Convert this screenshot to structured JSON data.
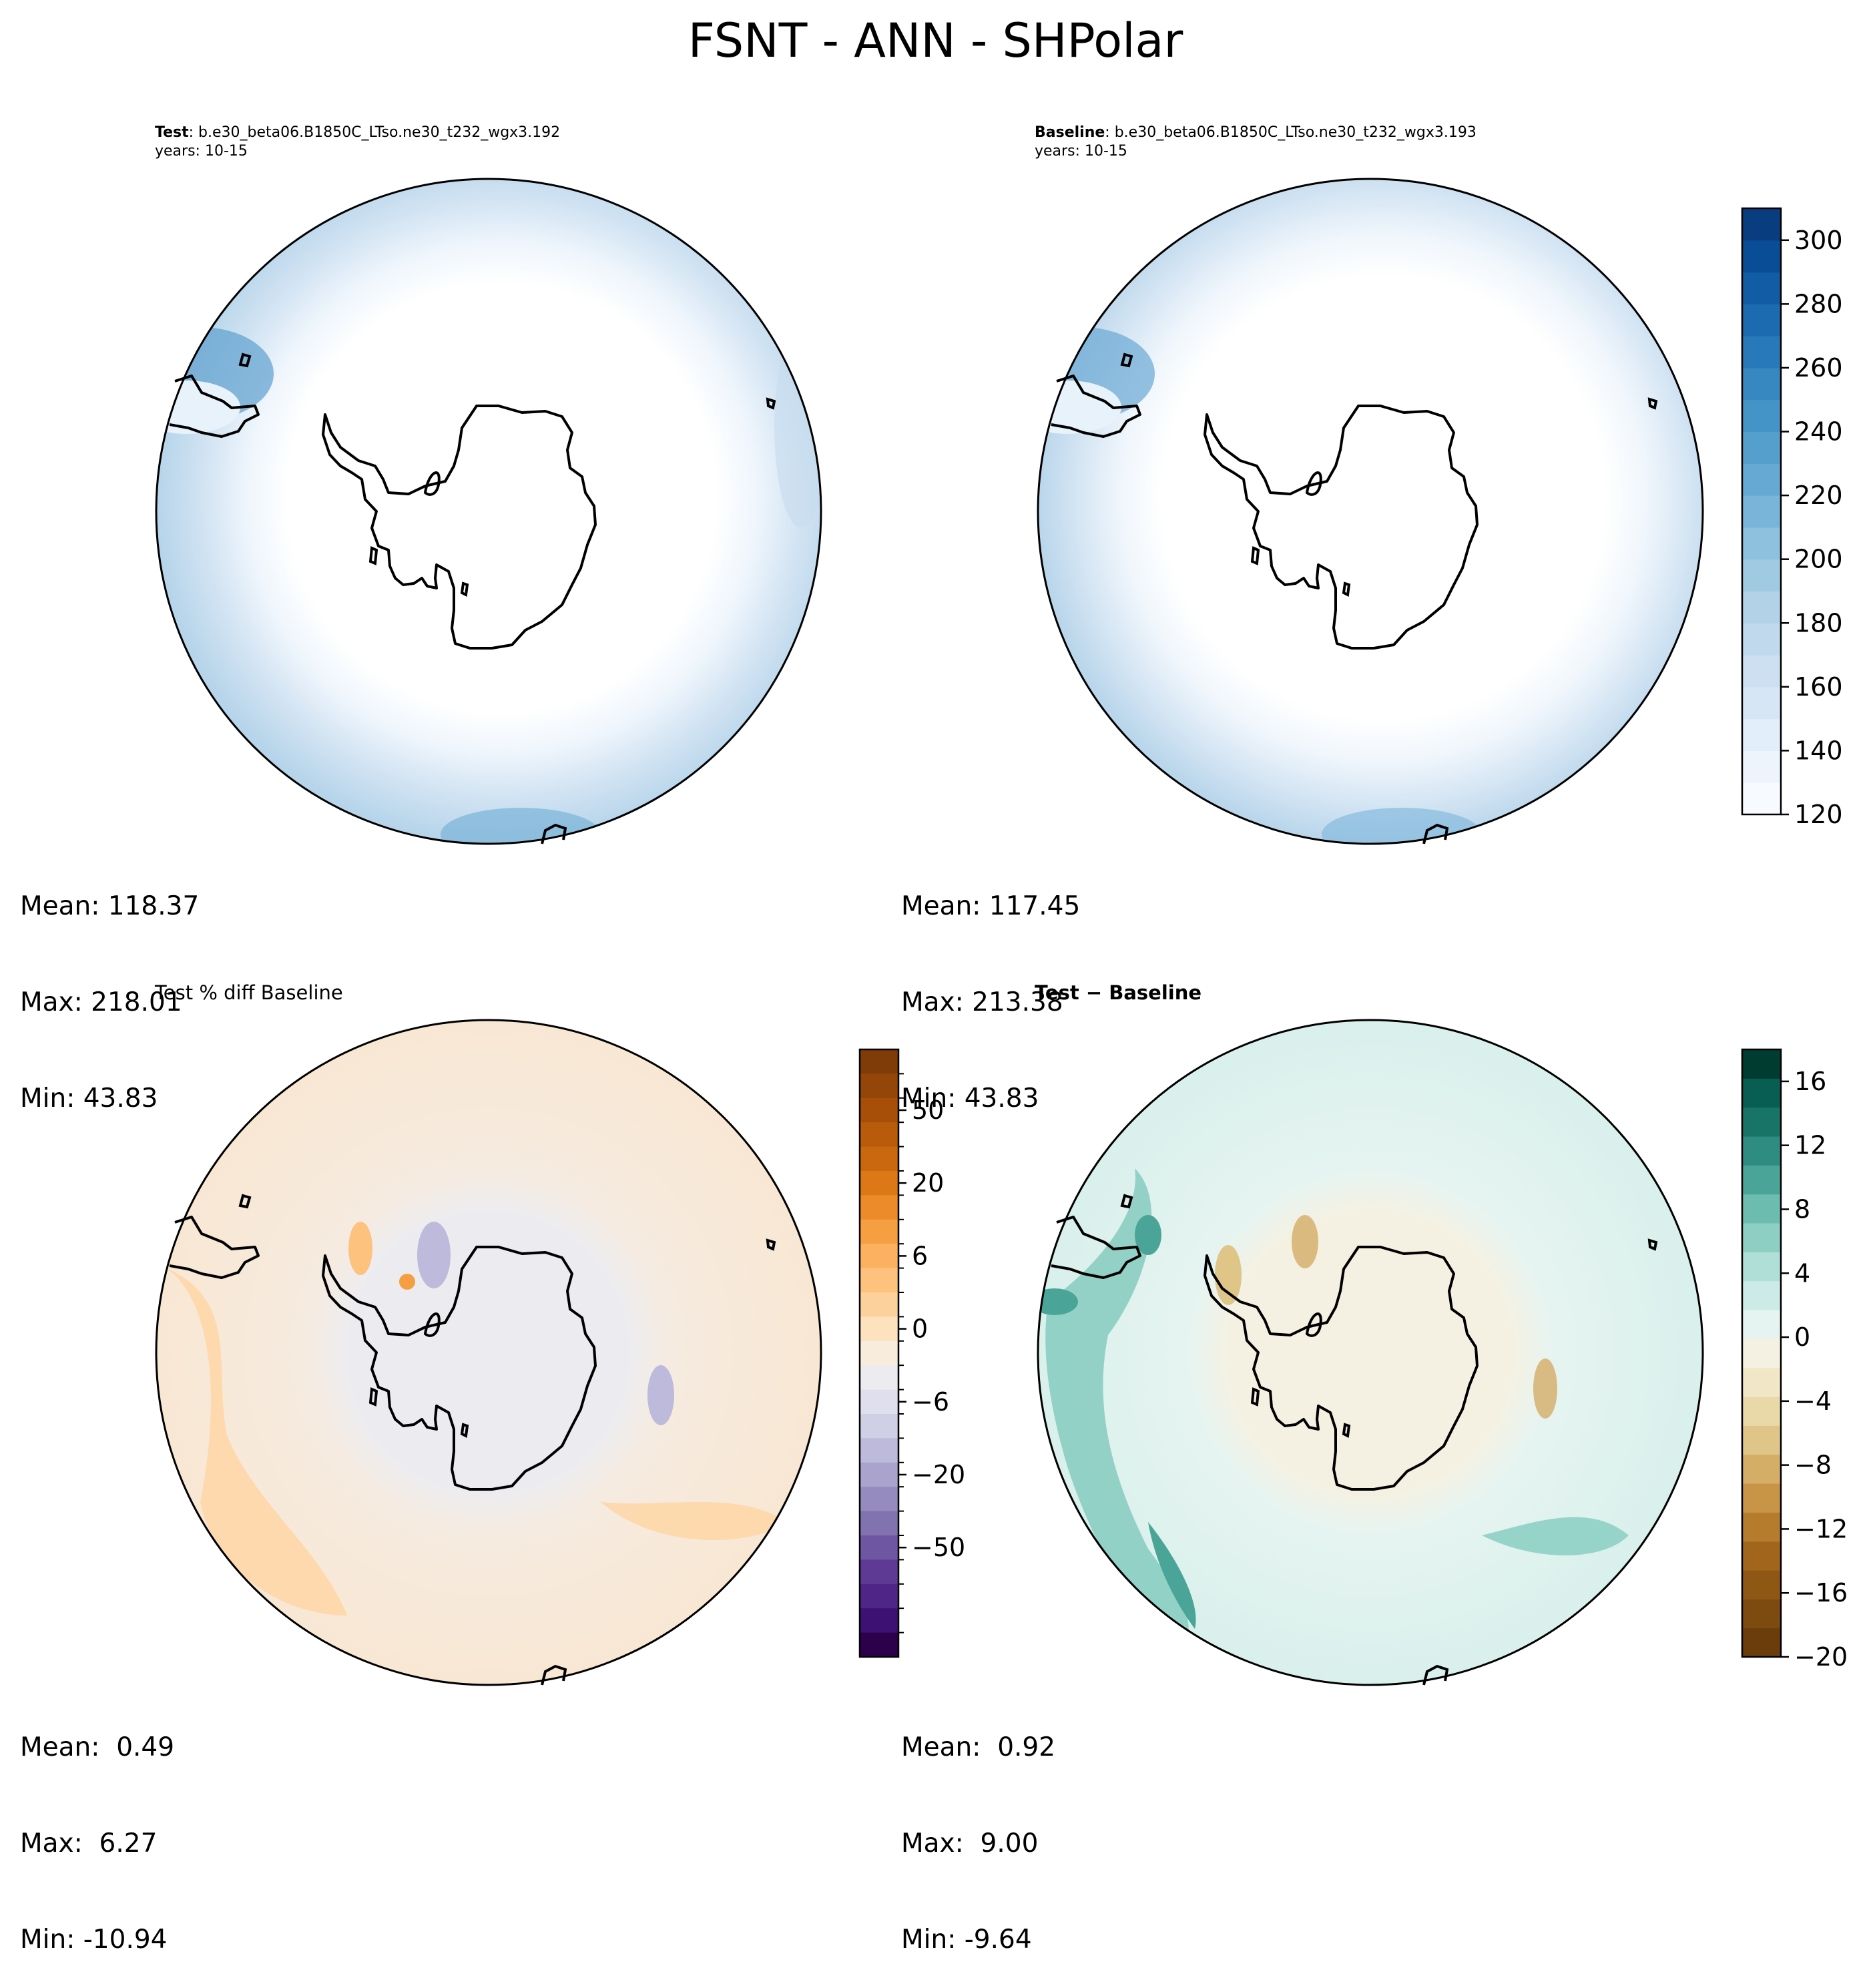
{
  "title": "FSNT - ANN - SHPolar",
  "panels": {
    "test": {
      "label_bold": "Test",
      "label_rest": ": b.e30_beta06.B1850C_LTso.ne30_t232_wgx3.192",
      "years": "years: 10-15",
      "mean": "Mean: 118.37",
      "max": "Max: 218.01",
      "min": "Min: 43.83"
    },
    "baseline": {
      "label_bold": "Baseline",
      "label_rest": ": b.e30_beta06.B1850C_LTso.ne30_t232_wgx3.193",
      "years": "years: 10-15",
      "mean": "Mean: 117.45",
      "max": "Max: 213.38",
      "min": "Min: 43.83"
    },
    "pctdiff": {
      "label": "Test % diff Baseline",
      "mean": "Mean:  0.49",
      "max": "Max:  6.27",
      "min": "Min: -10.94"
    },
    "diff": {
      "label": "Test − Baseline",
      "mean": "Mean:  0.92",
      "max": "Max:  9.00",
      "min": "Min: -9.64"
    }
  },
  "chart_data": [
    {
      "type": "heatmap",
      "title": "Test: b.e30_beta06.B1850C_LTso.ne30_t232_wgx3.192",
      "projection": "south-polar-stereographic",
      "stats": {
        "mean": 118.37,
        "max": 218.01,
        "min": 43.83
      }
    },
    {
      "type": "heatmap",
      "title": "Baseline: b.e30_beta06.B1850C_LTso.ne30_t232_wgx3.193",
      "projection": "south-polar-stereographic",
      "stats": {
        "mean": 117.45,
        "max": 213.38,
        "min": 43.83
      },
      "colorbar": {
        "range": [
          120,
          310
        ],
        "tick_values": [
          120,
          140,
          160,
          180,
          200,
          220,
          240,
          260,
          280,
          300
        ],
        "tick_labels": [
          "120",
          "140",
          "160",
          "180",
          "200",
          "220",
          "240",
          "260",
          "280",
          "300"
        ],
        "colors": [
          "#f7fbff",
          "#edf4fc",
          "#e2eef9",
          "#d7e6f5",
          "#cde0f1",
          "#c0d9ed",
          "#b2d2e8",
          "#a0cae1",
          "#8dc1dd",
          "#79b5d9",
          "#66aad4",
          "#559fcd",
          "#4594c7",
          "#3787c0",
          "#2879b9",
          "#1c6aaf",
          "#115ca5",
          "#084d96",
          "#083e80"
        ]
      }
    },
    {
      "type": "heatmap",
      "title": "Test % diff Baseline",
      "projection": "south-polar-stereographic",
      "stats": {
        "mean": 0.49,
        "max": 6.27,
        "min": -10.94
      },
      "colorbar": {
        "tick_labels": [
          "50",
          "20",
          "6",
          "0",
          "−6",
          "−20",
          "−50"
        ],
        "colors_top_to_bottom": [
          "#7f3b08",
          "#944508",
          "#a74f08",
          "#b85b0a",
          "#c9680e",
          "#dc7815",
          "#eb8b2a",
          "#f69f42",
          "#fbb15f",
          "#fdc27e",
          "#fdd19c",
          "#fde2bd",
          "#f8ecdd",
          "#ececf0",
          "#dfdfee",
          "#cfcfe6",
          "#bdbadb",
          "#a9a3cd",
          "#958bbe",
          "#8172b0",
          "#6f56a3",
          "#5e3a94",
          "#4f2587",
          "#3d1174",
          "#2d004b"
        ],
        "label_rows": [
          2,
          5,
          8,
          11,
          14,
          17,
          20
        ]
      }
    },
    {
      "type": "heatmap",
      "title": "Test − Baseline",
      "projection": "south-polar-stereographic",
      "stats": {
        "mean": 0.92,
        "max": 9.0,
        "min": -9.64
      },
      "colorbar": {
        "range": [
          -20,
          18
        ],
        "tick_values": [
          -20,
          -16,
          -12,
          -8,
          -4,
          0,
          4,
          8,
          12,
          16
        ],
        "tick_labels": [
          "−20",
          "−16",
          "−12",
          "−8",
          "−4",
          "0",
          "4",
          "8",
          "12",
          "16"
        ],
        "colors": [
          "#6b3d0b",
          "#7d4a10",
          "#8f5714",
          "#a1661b",
          "#b67c2d",
          "#c79545",
          "#d4ad66",
          "#dfc688",
          "#e9d8a8",
          "#f1e7c7",
          "#f5f1e2",
          "#e6f4f1",
          "#cdebe6",
          "#b0dfd7",
          "#8ecfc4",
          "#6cbcaf",
          "#4aa598",
          "#2e8c80",
          "#197468",
          "#085e52",
          "#003c30"
        ]
      }
    }
  ]
}
